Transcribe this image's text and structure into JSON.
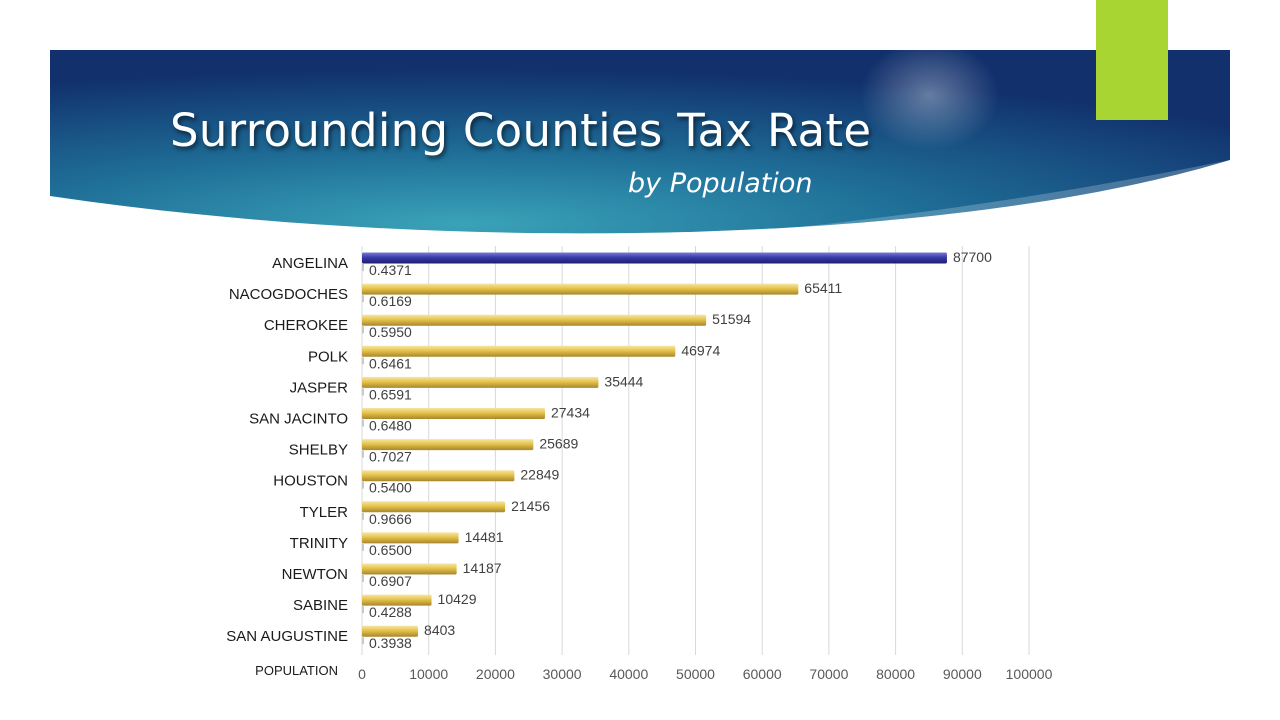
{
  "title": "Surrounding Counties Tax Rate",
  "subtitle": "by Population",
  "colors": {
    "highlight": "#3a3aa8",
    "bar": "#e5c24a",
    "banner_dark": "#12306e",
    "banner_light": "#2f93ae",
    "accent": "#a8d531"
  },
  "chart_data": {
    "type": "bar",
    "orientation": "horizontal",
    "categories": [
      "ANGELINA",
      "NACOGDOCHES",
      "CHEROKEE",
      "POLK",
      "JASPER",
      "SAN JACINTO",
      "SHELBY",
      "HOUSTON",
      "TYLER",
      "TRINITY",
      "NEWTON",
      "SABINE",
      "SAN AUGUSTINE"
    ],
    "series": [
      {
        "values": [
          87700,
          65411,
          51594,
          46974,
          35444,
          27434,
          25689,
          22849,
          21456,
          14481,
          14187,
          10429,
          8403
        ]
      },
      {
        "values": [
          0.4371,
          0.6169,
          0.595,
          0.6461,
          0.6591,
          0.648,
          0.7027,
          0.54,
          0.9666,
          0.65,
          0.6907,
          0.4288,
          0.3938
        ]
      }
    ],
    "rate_labels": [
      "0.4371",
      "0.6169",
      "0.5950",
      "0.6461",
      "0.6591",
      "0.6480",
      "0.7027",
      "0.5400",
      "0.9666",
      "0.6500",
      "0.6907",
      "0.4288",
      "0.3938"
    ],
    "xlabel": "POPULATION",
    "xlim": [
      0,
      100000
    ],
    "xticks": [
      0,
      10000,
      20000,
      30000,
      40000,
      50000,
      60000,
      70000,
      80000,
      90000,
      100000
    ],
    "grid": true,
    "legend": "none",
    "highlight_index": 0
  }
}
